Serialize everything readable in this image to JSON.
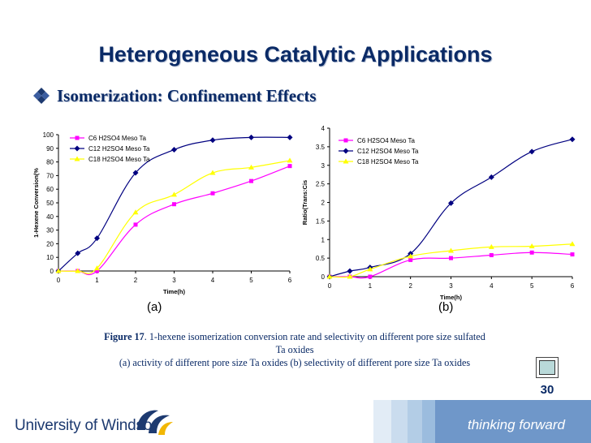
{
  "slide": {
    "title": "Heterogeneous Catalytic Applications",
    "subtitle": "Isomerization: Confinement Effects",
    "panel_a_label": "(a)",
    "panel_b_label": "(b)",
    "caption_fig": "Figure 17",
    "caption_line1": ". 1-hexene isomerization conversion rate and selectivity on different pore size sulfated",
    "caption_line2": "Ta oxides",
    "caption_line3": "(a) activity of different pore size Ta oxides (b) selectivity of different pore size Ta oxides",
    "page_number": "30"
  },
  "footer": {
    "university": "University of Windsor",
    "tagline": "thinking forward"
  },
  "colors": {
    "title": "#0a2a66",
    "c6": "#ff00ff",
    "c12": "#000080",
    "c18": "#ffff00"
  },
  "chart_data": [
    {
      "type": "line",
      "xlabel": "Time(h)",
      "ylabel": "1-Hexene Conversion(%",
      "xlim": [
        0,
        6
      ],
      "ylim": [
        0,
        100
      ],
      "xticks": [
        0,
        1,
        2,
        3,
        4,
        5,
        6
      ],
      "yticks": [
        0,
        10,
        20,
        30,
        40,
        50,
        60,
        70,
        80,
        90,
        100
      ],
      "legend_position": "top-left",
      "series": [
        {
          "name": "C6 H2SO4 Meso Ta",
          "marker": "square",
          "color": "#ff00ff",
          "x": [
            0,
            0.5,
            1,
            2,
            3,
            4,
            5,
            6
          ],
          "y": [
            0,
            0,
            0,
            34,
            49,
            57,
            66,
            77
          ]
        },
        {
          "name": "C12 H2SO4 Meso Ta",
          "marker": "diamond",
          "color": "#000080",
          "x": [
            0,
            0.5,
            1,
            2,
            3,
            4,
            5,
            6
          ],
          "y": [
            0,
            13,
            24,
            72,
            89,
            96,
            98,
            98
          ]
        },
        {
          "name": "C18 H2SO4 Meso Ta",
          "marker": "triangle",
          "color": "#ffff00",
          "x": [
            0,
            0.5,
            1,
            2,
            3,
            4,
            5,
            6
          ],
          "y": [
            0,
            0,
            2,
            43,
            56,
            72,
            76,
            81
          ]
        }
      ]
    },
    {
      "type": "line",
      "xlabel": "Time(h)",
      "ylabel": "Ratio(Trans:Cis",
      "xlim": [
        0,
        6
      ],
      "ylim": [
        0,
        4
      ],
      "xticks": [
        0,
        1,
        2,
        3,
        4,
        5,
        6
      ],
      "yticks": [
        0,
        0.5,
        1,
        1.5,
        2,
        2.5,
        3,
        3.5,
        4
      ],
      "legend_position": "top-left",
      "series": [
        {
          "name": "C6 H2SO4 Meso Ta",
          "marker": "square",
          "color": "#ff00ff",
          "x": [
            0,
            0.5,
            1,
            2,
            3,
            4,
            5,
            6
          ],
          "y": [
            0,
            0,
            0,
            0.45,
            0.5,
            0.58,
            0.65,
            0.6
          ]
        },
        {
          "name": "C12 H2SO4 Meso Ta",
          "marker": "diamond",
          "color": "#000080",
          "x": [
            0,
            0.5,
            1,
            2,
            3,
            4,
            5,
            6
          ],
          "y": [
            0,
            0.15,
            0.25,
            0.62,
            1.98,
            2.68,
            3.37,
            3.7
          ]
        },
        {
          "name": "C18 H2SO4 Meso Ta",
          "marker": "triangle",
          "color": "#ffff00",
          "x": [
            0,
            0.5,
            1,
            2,
            3,
            4,
            5,
            6
          ],
          "y": [
            0,
            0,
            0.2,
            0.55,
            0.7,
            0.8,
            0.82,
            0.88
          ]
        }
      ]
    }
  ]
}
